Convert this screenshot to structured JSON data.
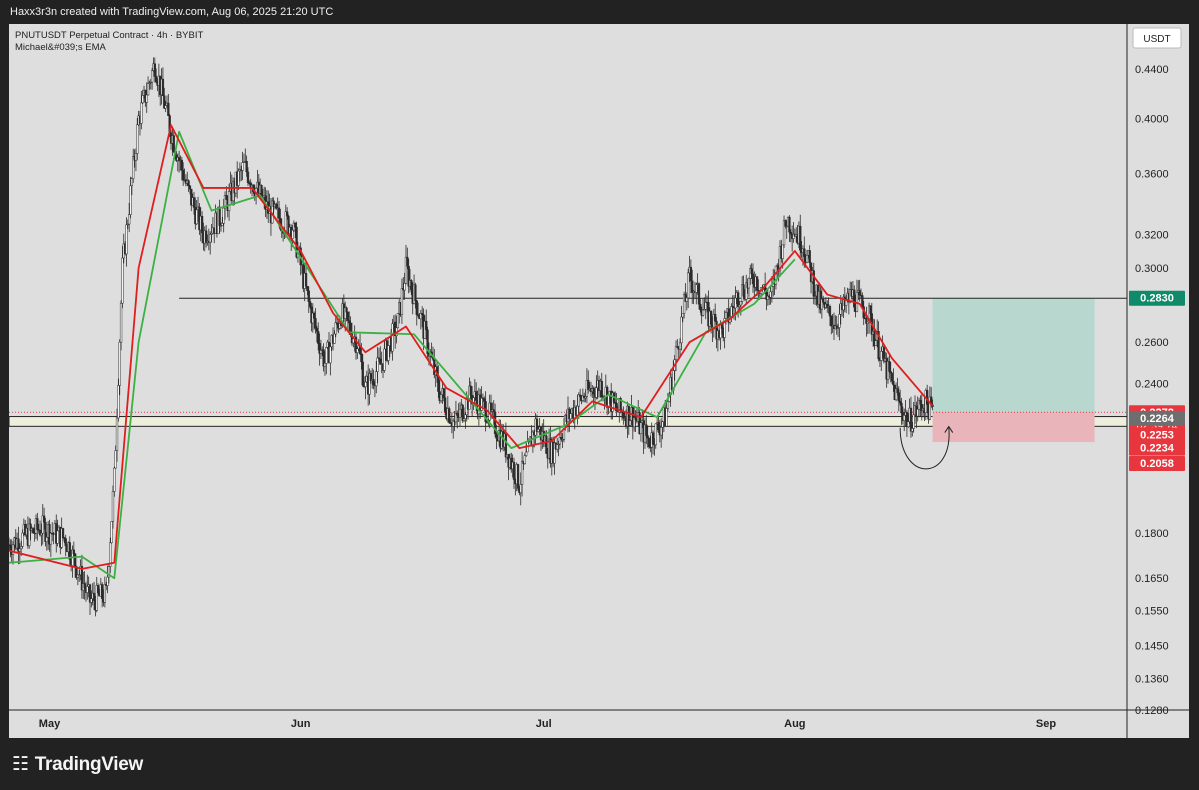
{
  "header": {
    "credit": "Haxx3r3n created with TradingView.com, Aug 06, 2025 21:20 UTC"
  },
  "legend": {
    "symbol_line": "PNUTUSDT Perpetual Contract · 4h · BYBIT",
    "indicator": "Michael&#039;s EMA"
  },
  "currency_badge": "USDT",
  "footer": {
    "brand": "TradingView"
  },
  "colors": {
    "background": "#dedede",
    "candle": "#2b2b2b",
    "ema_fast": "#e01e1e",
    "ema_slow": "#3cb043",
    "profit_zone": "#b7d7cf",
    "loss_zone": "#e9b5bb",
    "support_band": "#eeeedc",
    "price_tag_red": "#e8363f",
    "price_tag_grey": "#6e6e6e",
    "price_tag_green": "#0f8a6a"
  },
  "chart_data": {
    "type": "candlestick",
    "xlabel": "",
    "ylabel": "",
    "y_scale": "log",
    "ylim": [
      0.128,
      0.48
    ],
    "xlim": [
      "2025-04-26",
      "2025-09-11"
    ],
    "grid": false,
    "y_ticks": [
      0.128,
      0.136,
      0.145,
      0.155,
      0.165,
      0.18,
      0.24,
      0.26,
      0.3,
      0.32,
      0.36,
      0.4,
      0.44
    ],
    "x_ticks": [
      {
        "label": "May",
        "date": "2025-05-01"
      },
      {
        "label": "Jun",
        "date": "2025-06-01"
      },
      {
        "label": "Jul",
        "date": "2025-07-01"
      },
      {
        "label": "Aug",
        "date": "2025-08-01"
      },
      {
        "label": "Sep",
        "date": "2025-09-01"
      }
    ],
    "price_path": [
      {
        "date": "2025-04-26",
        "price": 0.176
      },
      {
        "date": "2025-04-30",
        "price": 0.182
      },
      {
        "date": "2025-05-03",
        "price": 0.178
      },
      {
        "date": "2025-05-06",
        "price": 0.158
      },
      {
        "date": "2025-05-08",
        "price": 0.16
      },
      {
        "date": "2025-05-09",
        "price": 0.2
      },
      {
        "date": "2025-05-10",
        "price": 0.3
      },
      {
        "date": "2025-05-12",
        "price": 0.4
      },
      {
        "date": "2025-05-14",
        "price": 0.445
      },
      {
        "date": "2025-05-16",
        "price": 0.39
      },
      {
        "date": "2025-05-18",
        "price": 0.35
      },
      {
        "date": "2025-05-20",
        "price": 0.32
      },
      {
        "date": "2025-05-22",
        "price": 0.33
      },
      {
        "date": "2025-05-25",
        "price": 0.365
      },
      {
        "date": "2025-05-28",
        "price": 0.335
      },
      {
        "date": "2025-05-31",
        "price": 0.325
      },
      {
        "date": "2025-06-02",
        "price": 0.28
      },
      {
        "date": "2025-06-04",
        "price": 0.25
      },
      {
        "date": "2025-06-06",
        "price": 0.275
      },
      {
        "date": "2025-06-08",
        "price": 0.26
      },
      {
        "date": "2025-06-09",
        "price": 0.238
      },
      {
        "date": "2025-06-11",
        "price": 0.25
      },
      {
        "date": "2025-06-13",
        "price": 0.27
      },
      {
        "date": "2025-06-14",
        "price": 0.3
      },
      {
        "date": "2025-06-16",
        "price": 0.27
      },
      {
        "date": "2025-06-18",
        "price": 0.238
      },
      {
        "date": "2025-06-20",
        "price": 0.222
      },
      {
        "date": "2025-06-22",
        "price": 0.235
      },
      {
        "date": "2025-06-24",
        "price": 0.228
      },
      {
        "date": "2025-06-26",
        "price": 0.215
      },
      {
        "date": "2025-06-28",
        "price": 0.198
      },
      {
        "date": "2025-06-30",
        "price": 0.222
      },
      {
        "date": "2025-07-02",
        "price": 0.21
      },
      {
        "date": "2025-07-04",
        "price": 0.225
      },
      {
        "date": "2025-07-06",
        "price": 0.235
      },
      {
        "date": "2025-07-08",
        "price": 0.24
      },
      {
        "date": "2025-07-10",
        "price": 0.228
      },
      {
        "date": "2025-07-12",
        "price": 0.226
      },
      {
        "date": "2025-07-14",
        "price": 0.215
      },
      {
        "date": "2025-07-16",
        "price": 0.225
      },
      {
        "date": "2025-07-18",
        "price": 0.27
      },
      {
        "date": "2025-07-19",
        "price": 0.295
      },
      {
        "date": "2025-07-21",
        "price": 0.275
      },
      {
        "date": "2025-07-23",
        "price": 0.265
      },
      {
        "date": "2025-07-25",
        "price": 0.285
      },
      {
        "date": "2025-07-27",
        "price": 0.295
      },
      {
        "date": "2025-07-29",
        "price": 0.282
      },
      {
        "date": "2025-07-31",
        "price": 0.33
      },
      {
        "date": "2025-08-02",
        "price": 0.315
      },
      {
        "date": "2025-08-04",
        "price": 0.28
      },
      {
        "date": "2025-08-06",
        "price": 0.27
      },
      {
        "date": "2025-08-08",
        "price": 0.285
      },
      {
        "date": "2025-08-10",
        "price": 0.275
      },
      {
        "date": "2025-08-12",
        "price": 0.25
      },
      {
        "date": "2025-08-14",
        "price": 0.23
      },
      {
        "date": "2025-08-15",
        "price": 0.223
      },
      {
        "date": "2025-08-17",
        "price": 0.232
      },
      {
        "date": "2025-08-18",
        "price": 0.2272
      }
    ],
    "ema_fast": [
      {
        "date": "2025-04-26",
        "price": 0.174
      },
      {
        "date": "2025-05-05",
        "price": 0.168
      },
      {
        "date": "2025-05-09",
        "price": 0.17
      },
      {
        "date": "2025-05-12",
        "price": 0.3
      },
      {
        "date": "2025-05-16",
        "price": 0.395
      },
      {
        "date": "2025-05-20",
        "price": 0.35
      },
      {
        "date": "2025-05-26",
        "price": 0.35
      },
      {
        "date": "2025-06-01",
        "price": 0.31
      },
      {
        "date": "2025-06-05",
        "price": 0.275
      },
      {
        "date": "2025-06-09",
        "price": 0.255
      },
      {
        "date": "2025-06-14",
        "price": 0.268
      },
      {
        "date": "2025-06-19",
        "price": 0.238
      },
      {
        "date": "2025-06-24",
        "price": 0.228
      },
      {
        "date": "2025-06-28",
        "price": 0.212
      },
      {
        "date": "2025-07-02",
        "price": 0.215
      },
      {
        "date": "2025-07-07",
        "price": 0.232
      },
      {
        "date": "2025-07-13",
        "price": 0.225
      },
      {
        "date": "2025-07-19",
        "price": 0.26
      },
      {
        "date": "2025-07-24",
        "price": 0.272
      },
      {
        "date": "2025-07-28",
        "price": 0.288
      },
      {
        "date": "2025-08-01",
        "price": 0.31
      },
      {
        "date": "2025-08-05",
        "price": 0.285
      },
      {
        "date": "2025-08-09",
        "price": 0.28
      },
      {
        "date": "2025-08-13",
        "price": 0.252
      },
      {
        "date": "2025-08-18",
        "price": 0.23
      }
    ],
    "ema_slow": [
      {
        "date": "2025-04-26",
        "price": 0.17
      },
      {
        "date": "2025-05-05",
        "price": 0.172
      },
      {
        "date": "2025-05-09",
        "price": 0.165
      },
      {
        "date": "2025-05-12",
        "price": 0.26
      },
      {
        "date": "2025-05-17",
        "price": 0.39
      },
      {
        "date": "2025-05-21",
        "price": 0.335
      },
      {
        "date": "2025-05-27",
        "price": 0.345
      },
      {
        "date": "2025-06-07",
        "price": 0.265
      },
      {
        "date": "2025-06-15",
        "price": 0.264
      },
      {
        "date": "2025-06-27",
        "price": 0.212
      },
      {
        "date": "2025-07-04",
        "price": 0.222
      },
      {
        "date": "2025-07-09",
        "price": 0.235
      },
      {
        "date": "2025-07-15",
        "price": 0.225
      },
      {
        "date": "2025-07-21",
        "price": 0.265
      },
      {
        "date": "2025-07-27",
        "price": 0.28
      },
      {
        "date": "2025-08-01",
        "price": 0.305
      }
    ],
    "horizontal_lines": [
      {
        "price": 0.283,
        "from": "2025-05-17",
        "to": "2025-09-11"
      },
      {
        "price": 0.2272,
        "style": "dotted",
        "color": "#e8363f"
      }
    ],
    "support_zone": {
      "top": 0.2253,
      "bottom": 0.2211
    },
    "position_tool": {
      "from": "2025-08-18",
      "to": "2025-09-07",
      "entry": 0.2272,
      "target": 0.283,
      "stop": 0.2145
    },
    "annotations": [
      {
        "type": "curved-arrow",
        "from": {
          "date": "2025-08-14",
          "price": 0.2205
        },
        "to": {
          "date": "2025-08-20",
          "price": 0.221
        }
      }
    ],
    "price_labels": [
      {
        "value": "0.2830",
        "color": "green",
        "price": 0.283
      },
      {
        "value": "0.2272",
        "sub": "02:39:14",
        "color": "red",
        "price": 0.2272
      },
      {
        "value": "0.2264",
        "color": "grey",
        "price": 0.2245
      },
      {
        "value": "0.2253",
        "color": "red",
        "price": 0.2175
      },
      {
        "value": "0.2234",
        "color": "red",
        "price": 0.212
      },
      {
        "value": "0.2058",
        "color": "red",
        "price": 0.2058
      }
    ]
  }
}
